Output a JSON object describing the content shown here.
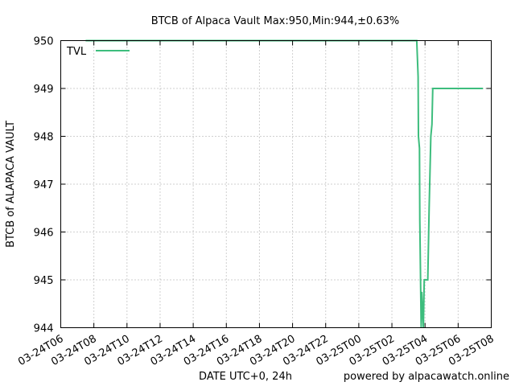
{
  "chart_data": {
    "type": "line",
    "title": "BTCB of Alpaca Vault Max:950,Min:944,±0.63%",
    "xlabel": "DATE UTC+0, 24h",
    "ylabel": "BTCB of ALAPACA VAULT",
    "credit": "powered by alpacawatch.online",
    "x_ticks": [
      "03-24T06",
      "03-24T08",
      "03-24T10",
      "03-24T12",
      "03-24T14",
      "03-24T16",
      "03-24T18",
      "03-24T20",
      "03-24T22",
      "03-25T00",
      "03-25T02",
      "03-25T04",
      "03-25T06",
      "03-25T08"
    ],
    "y_ticks": [
      "944",
      "945",
      "946",
      "947",
      "948",
      "949",
      "950"
    ],
    "xlim": [
      "03-24T06:00",
      "03-25T08:00"
    ],
    "ylim": [
      944,
      950
    ],
    "grid": true,
    "legend_position": "top-left",
    "series": [
      {
        "name": "TVL",
        "color": "#3dbd7d",
        "x": [
          "03-24T07:30",
          "03-25T03:30",
          "03-25T03:35",
          "03-25T03:36",
          "03-25T03:40",
          "03-25T03:41",
          "03-25T03:46",
          "03-25T03:48",
          "03-25T03:54",
          "03-25T03:57",
          "03-25T04:10",
          "03-25T04:15",
          "03-25T04:21",
          "03-25T04:25",
          "03-25T04:28",
          "03-25T07:30"
        ],
        "y": [
          950,
          950,
          949.25,
          948.0,
          947.75,
          946.25,
          944.0,
          944.75,
          944.0,
          945.0,
          945.0,
          946.5,
          948.0,
          948.25,
          949.0,
          949.0
        ]
      }
    ]
  }
}
